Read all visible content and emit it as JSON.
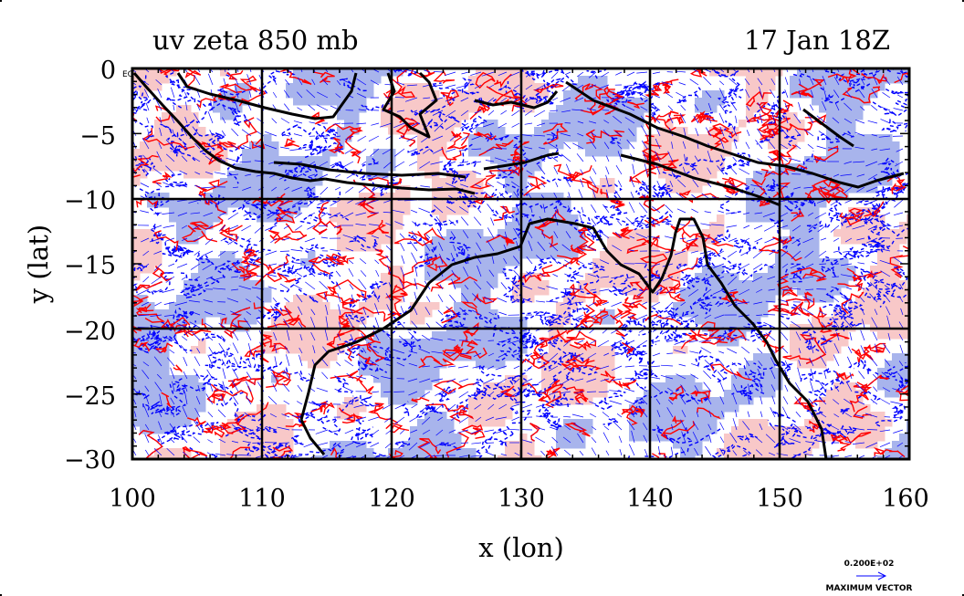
{
  "title_left": "uv zeta 850 mb",
  "title_right": "17 Jan 18Z",
  "corner_label": "EQ",
  "x_axis": {
    "label": "x (lon)",
    "ticks": [
      "100",
      "110",
      "120",
      "130",
      "140",
      "150",
      "160"
    ],
    "range": [
      100,
      160
    ]
  },
  "y_axis": {
    "label": "y (lat)",
    "ticks": [
      "0",
      "−5",
      "−10",
      "−15",
      "−20",
      "−25",
      "−30"
    ],
    "range": [
      -30,
      0
    ]
  },
  "vector_scale": {
    "value": "0.200E+02",
    "label": "MAXIMUM VECTOR"
  },
  "colors": {
    "positive_fill": "#f8c8c8",
    "negative_fill": "#a8b4ec",
    "positive_contour": "#ff0000",
    "negative_contour": "#0000ff",
    "coast": "#000000",
    "background": "#ffffff"
  }
}
